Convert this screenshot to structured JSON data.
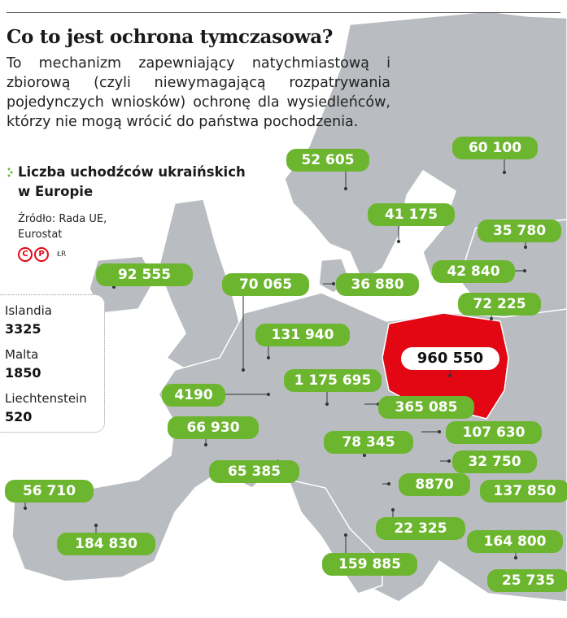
{
  "title": "Co to jest ochrona tymczasowa?",
  "description": "To mechanizm zapewniający natychmiastową i zbiorową (czyli niewymagającą rozpatrywania pojedynczych wniosków) ochronę dla wysiedleńców, którzy nie mogą wrócić do państwa pochodzenia.",
  "legend": {
    "title": "Liczba uchodźców ukraińskich w Europie",
    "source": "Źródło: Rada UE, Eurostat",
    "author": "ŁR"
  },
  "small_countries": [
    {
      "name": "Islandia",
      "value": "3325"
    },
    {
      "name": "Malta",
      "value": "1850"
    },
    {
      "name": "Liechtenstein",
      "value": "520"
    }
  ],
  "colors": {
    "pill": "#6cb52f",
    "highlight": "#e30613",
    "land": "#b9bcc0",
    "sea": "#ffffff"
  },
  "labels": [
    {
      "id": "poland",
      "value": "960 550",
      "highlight": true
    },
    {
      "id": "norway",
      "value": "52 605"
    },
    {
      "id": "finland",
      "value": "60 100"
    },
    {
      "id": "sweden",
      "value": "41 175"
    },
    {
      "id": "estonia",
      "value": "35 780"
    },
    {
      "id": "latvia",
      "value": "42 840"
    },
    {
      "id": "lithuania",
      "value": "72 225"
    },
    {
      "id": "ireland",
      "value": "92 555"
    },
    {
      "id": "netherlands",
      "value": "70 065"
    },
    {
      "id": "denmark",
      "value": "36 880"
    },
    {
      "id": "belgium",
      "value": "131 940"
    },
    {
      "id": "germany",
      "value": "1 175 695"
    },
    {
      "id": "luxembourg",
      "value": "4190"
    },
    {
      "id": "czechia",
      "value": "365 085"
    },
    {
      "id": "france",
      "value": "66 930"
    },
    {
      "id": "slovakia",
      "value": "107 630"
    },
    {
      "id": "austria",
      "value": "78 345"
    },
    {
      "id": "hungary",
      "value": "32 750"
    },
    {
      "id": "switzerland",
      "value": "65 385"
    },
    {
      "id": "croatia",
      "value": "8870"
    },
    {
      "id": "romania",
      "value": "137 850"
    },
    {
      "id": "portugal",
      "value": "56 710"
    },
    {
      "id": "montenegro",
      "value": "22 325"
    },
    {
      "id": "bulgaria",
      "value": "164 800"
    },
    {
      "id": "spain",
      "value": "184 830"
    },
    {
      "id": "italy",
      "value": "159 885"
    },
    {
      "id": "greece",
      "value": "25 735"
    }
  ]
}
